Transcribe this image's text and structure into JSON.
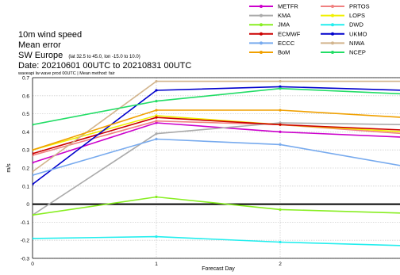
{
  "chart_data": {
    "type": "line",
    "title_lines": [
      "10m wind speed",
      "Mean error",
      "SW Europe",
      "Date: 20210601 00UTC to 20210831 00UTC"
    ],
    "title_region_note": "(lat  32.5 to 45.0, lon  -15.0 to 10.0)",
    "subtitle": "waveapi lw wave prod 00UTC | Mean method: fair",
    "xlabel": "Forecast Day",
    "ylabel": "m/s",
    "x": [
      0,
      1,
      2,
      3
    ],
    "xlim": [
      0,
      3
    ],
    "ylim": [
      -0.3,
      0.7
    ],
    "x_ticks": [
      "0",
      "1",
      "2"
    ],
    "y_ticks": [
      "0.7",
      "0.6",
      "0.5",
      "0.4",
      "0.3",
      "0.2",
      "0.1",
      "0",
      "-0.1",
      "-0.2",
      "-0.3"
    ],
    "grid": true,
    "legend_position": "top-right",
    "series": [
      {
        "name": "METFR",
        "color": "#cc00cc",
        "values": [
          0.23,
          0.45,
          0.4,
          0.37
        ]
      },
      {
        "name": "PRTOS",
        "color": "#f08080",
        "values": [
          0.27,
          0.46,
          0.44,
          0.39
        ]
      },
      {
        "name": "KMA",
        "color": "#aaaaaa",
        "values": [
          -0.06,
          0.39,
          0.45,
          0.44
        ]
      },
      {
        "name": "LOPS",
        "color": "#f0f000",
        "values": [
          0.3,
          0.49,
          0.44,
          0.4
        ]
      },
      {
        "name": "JMA",
        "color": "#88ee22",
        "values": [
          -0.06,
          0.04,
          -0.03,
          -0.05
        ]
      },
      {
        "name": "DWD",
        "color": "#22eeee",
        "values": [
          -0.19,
          -0.18,
          -0.21,
          -0.23
        ]
      },
      {
        "name": "ECMWF",
        "color": "#cc0000",
        "values": [
          0.28,
          0.48,
          0.44,
          0.41
        ]
      },
      {
        "name": "UKMO",
        "color": "#0000cc",
        "values": [
          0.11,
          0.63,
          0.65,
          0.63
        ]
      },
      {
        "name": "ECCC",
        "color": "#77aaee",
        "values": [
          0.16,
          0.36,
          0.33,
          0.21
        ]
      },
      {
        "name": "NIWA",
        "color": "#d2b48c",
        "values": [
          0.18,
          0.68,
          0.68,
          0.68
        ]
      },
      {
        "name": "BoM",
        "color": "#f0a000",
        "values": [
          0.3,
          0.52,
          0.52,
          0.48
        ]
      },
      {
        "name": "NCEP",
        "color": "#22dd66",
        "values": [
          0.44,
          0.57,
          0.64,
          0.61
        ]
      }
    ]
  }
}
